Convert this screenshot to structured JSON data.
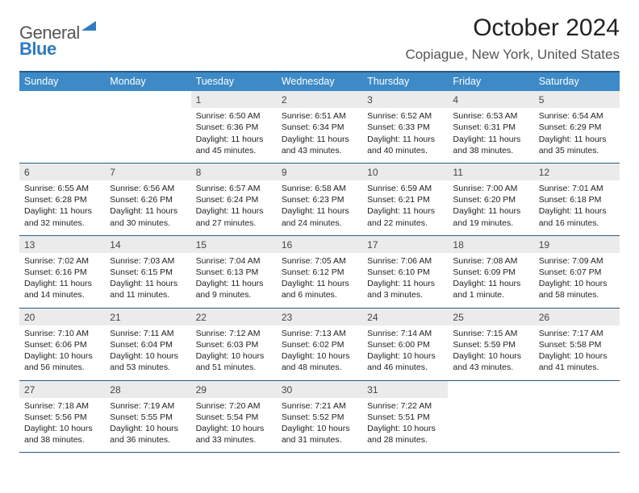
{
  "logo": {
    "line1": "General",
    "line2": "Blue"
  },
  "title": "October 2024",
  "location": "Copiague, New York, United States",
  "header_color": "#3d8ac7",
  "header_border_color": "#2a5a82",
  "daynum_bg": "#ebebeb",
  "background": "#ffffff",
  "day_names": [
    "Sunday",
    "Monday",
    "Tuesday",
    "Wednesday",
    "Thursday",
    "Friday",
    "Saturday"
  ],
  "weeks": [
    [
      {
        "n": "",
        "sunrise": "",
        "sunset": "",
        "daylight": ""
      },
      {
        "n": "",
        "sunrise": "",
        "sunset": "",
        "daylight": ""
      },
      {
        "n": "1",
        "sunrise": "Sunrise: 6:50 AM",
        "sunset": "Sunset: 6:36 PM",
        "daylight": "Daylight: 11 hours and 45 minutes."
      },
      {
        "n": "2",
        "sunrise": "Sunrise: 6:51 AM",
        "sunset": "Sunset: 6:34 PM",
        "daylight": "Daylight: 11 hours and 43 minutes."
      },
      {
        "n": "3",
        "sunrise": "Sunrise: 6:52 AM",
        "sunset": "Sunset: 6:33 PM",
        "daylight": "Daylight: 11 hours and 40 minutes."
      },
      {
        "n": "4",
        "sunrise": "Sunrise: 6:53 AM",
        "sunset": "Sunset: 6:31 PM",
        "daylight": "Daylight: 11 hours and 38 minutes."
      },
      {
        "n": "5",
        "sunrise": "Sunrise: 6:54 AM",
        "sunset": "Sunset: 6:29 PM",
        "daylight": "Daylight: 11 hours and 35 minutes."
      }
    ],
    [
      {
        "n": "6",
        "sunrise": "Sunrise: 6:55 AM",
        "sunset": "Sunset: 6:28 PM",
        "daylight": "Daylight: 11 hours and 32 minutes."
      },
      {
        "n": "7",
        "sunrise": "Sunrise: 6:56 AM",
        "sunset": "Sunset: 6:26 PM",
        "daylight": "Daylight: 11 hours and 30 minutes."
      },
      {
        "n": "8",
        "sunrise": "Sunrise: 6:57 AM",
        "sunset": "Sunset: 6:24 PM",
        "daylight": "Daylight: 11 hours and 27 minutes."
      },
      {
        "n": "9",
        "sunrise": "Sunrise: 6:58 AM",
        "sunset": "Sunset: 6:23 PM",
        "daylight": "Daylight: 11 hours and 24 minutes."
      },
      {
        "n": "10",
        "sunrise": "Sunrise: 6:59 AM",
        "sunset": "Sunset: 6:21 PM",
        "daylight": "Daylight: 11 hours and 22 minutes."
      },
      {
        "n": "11",
        "sunrise": "Sunrise: 7:00 AM",
        "sunset": "Sunset: 6:20 PM",
        "daylight": "Daylight: 11 hours and 19 minutes."
      },
      {
        "n": "12",
        "sunrise": "Sunrise: 7:01 AM",
        "sunset": "Sunset: 6:18 PM",
        "daylight": "Daylight: 11 hours and 16 minutes."
      }
    ],
    [
      {
        "n": "13",
        "sunrise": "Sunrise: 7:02 AM",
        "sunset": "Sunset: 6:16 PM",
        "daylight": "Daylight: 11 hours and 14 minutes."
      },
      {
        "n": "14",
        "sunrise": "Sunrise: 7:03 AM",
        "sunset": "Sunset: 6:15 PM",
        "daylight": "Daylight: 11 hours and 11 minutes."
      },
      {
        "n": "15",
        "sunrise": "Sunrise: 7:04 AM",
        "sunset": "Sunset: 6:13 PM",
        "daylight": "Daylight: 11 hours and 9 minutes."
      },
      {
        "n": "16",
        "sunrise": "Sunrise: 7:05 AM",
        "sunset": "Sunset: 6:12 PM",
        "daylight": "Daylight: 11 hours and 6 minutes."
      },
      {
        "n": "17",
        "sunrise": "Sunrise: 7:06 AM",
        "sunset": "Sunset: 6:10 PM",
        "daylight": "Daylight: 11 hours and 3 minutes."
      },
      {
        "n": "18",
        "sunrise": "Sunrise: 7:08 AM",
        "sunset": "Sunset: 6:09 PM",
        "daylight": "Daylight: 11 hours and 1 minute."
      },
      {
        "n": "19",
        "sunrise": "Sunrise: 7:09 AM",
        "sunset": "Sunset: 6:07 PM",
        "daylight": "Daylight: 10 hours and 58 minutes."
      }
    ],
    [
      {
        "n": "20",
        "sunrise": "Sunrise: 7:10 AM",
        "sunset": "Sunset: 6:06 PM",
        "daylight": "Daylight: 10 hours and 56 minutes."
      },
      {
        "n": "21",
        "sunrise": "Sunrise: 7:11 AM",
        "sunset": "Sunset: 6:04 PM",
        "daylight": "Daylight: 10 hours and 53 minutes."
      },
      {
        "n": "22",
        "sunrise": "Sunrise: 7:12 AM",
        "sunset": "Sunset: 6:03 PM",
        "daylight": "Daylight: 10 hours and 51 minutes."
      },
      {
        "n": "23",
        "sunrise": "Sunrise: 7:13 AM",
        "sunset": "Sunset: 6:02 PM",
        "daylight": "Daylight: 10 hours and 48 minutes."
      },
      {
        "n": "24",
        "sunrise": "Sunrise: 7:14 AM",
        "sunset": "Sunset: 6:00 PM",
        "daylight": "Daylight: 10 hours and 46 minutes."
      },
      {
        "n": "25",
        "sunrise": "Sunrise: 7:15 AM",
        "sunset": "Sunset: 5:59 PM",
        "daylight": "Daylight: 10 hours and 43 minutes."
      },
      {
        "n": "26",
        "sunrise": "Sunrise: 7:17 AM",
        "sunset": "Sunset: 5:58 PM",
        "daylight": "Daylight: 10 hours and 41 minutes."
      }
    ],
    [
      {
        "n": "27",
        "sunrise": "Sunrise: 7:18 AM",
        "sunset": "Sunset: 5:56 PM",
        "daylight": "Daylight: 10 hours and 38 minutes."
      },
      {
        "n": "28",
        "sunrise": "Sunrise: 7:19 AM",
        "sunset": "Sunset: 5:55 PM",
        "daylight": "Daylight: 10 hours and 36 minutes."
      },
      {
        "n": "29",
        "sunrise": "Sunrise: 7:20 AM",
        "sunset": "Sunset: 5:54 PM",
        "daylight": "Daylight: 10 hours and 33 minutes."
      },
      {
        "n": "30",
        "sunrise": "Sunrise: 7:21 AM",
        "sunset": "Sunset: 5:52 PM",
        "daylight": "Daylight: 10 hours and 31 minutes."
      },
      {
        "n": "31",
        "sunrise": "Sunrise: 7:22 AM",
        "sunset": "Sunset: 5:51 PM",
        "daylight": "Daylight: 10 hours and 28 minutes."
      },
      {
        "n": "",
        "sunrise": "",
        "sunset": "",
        "daylight": ""
      },
      {
        "n": "",
        "sunrise": "",
        "sunset": "",
        "daylight": ""
      }
    ]
  ]
}
